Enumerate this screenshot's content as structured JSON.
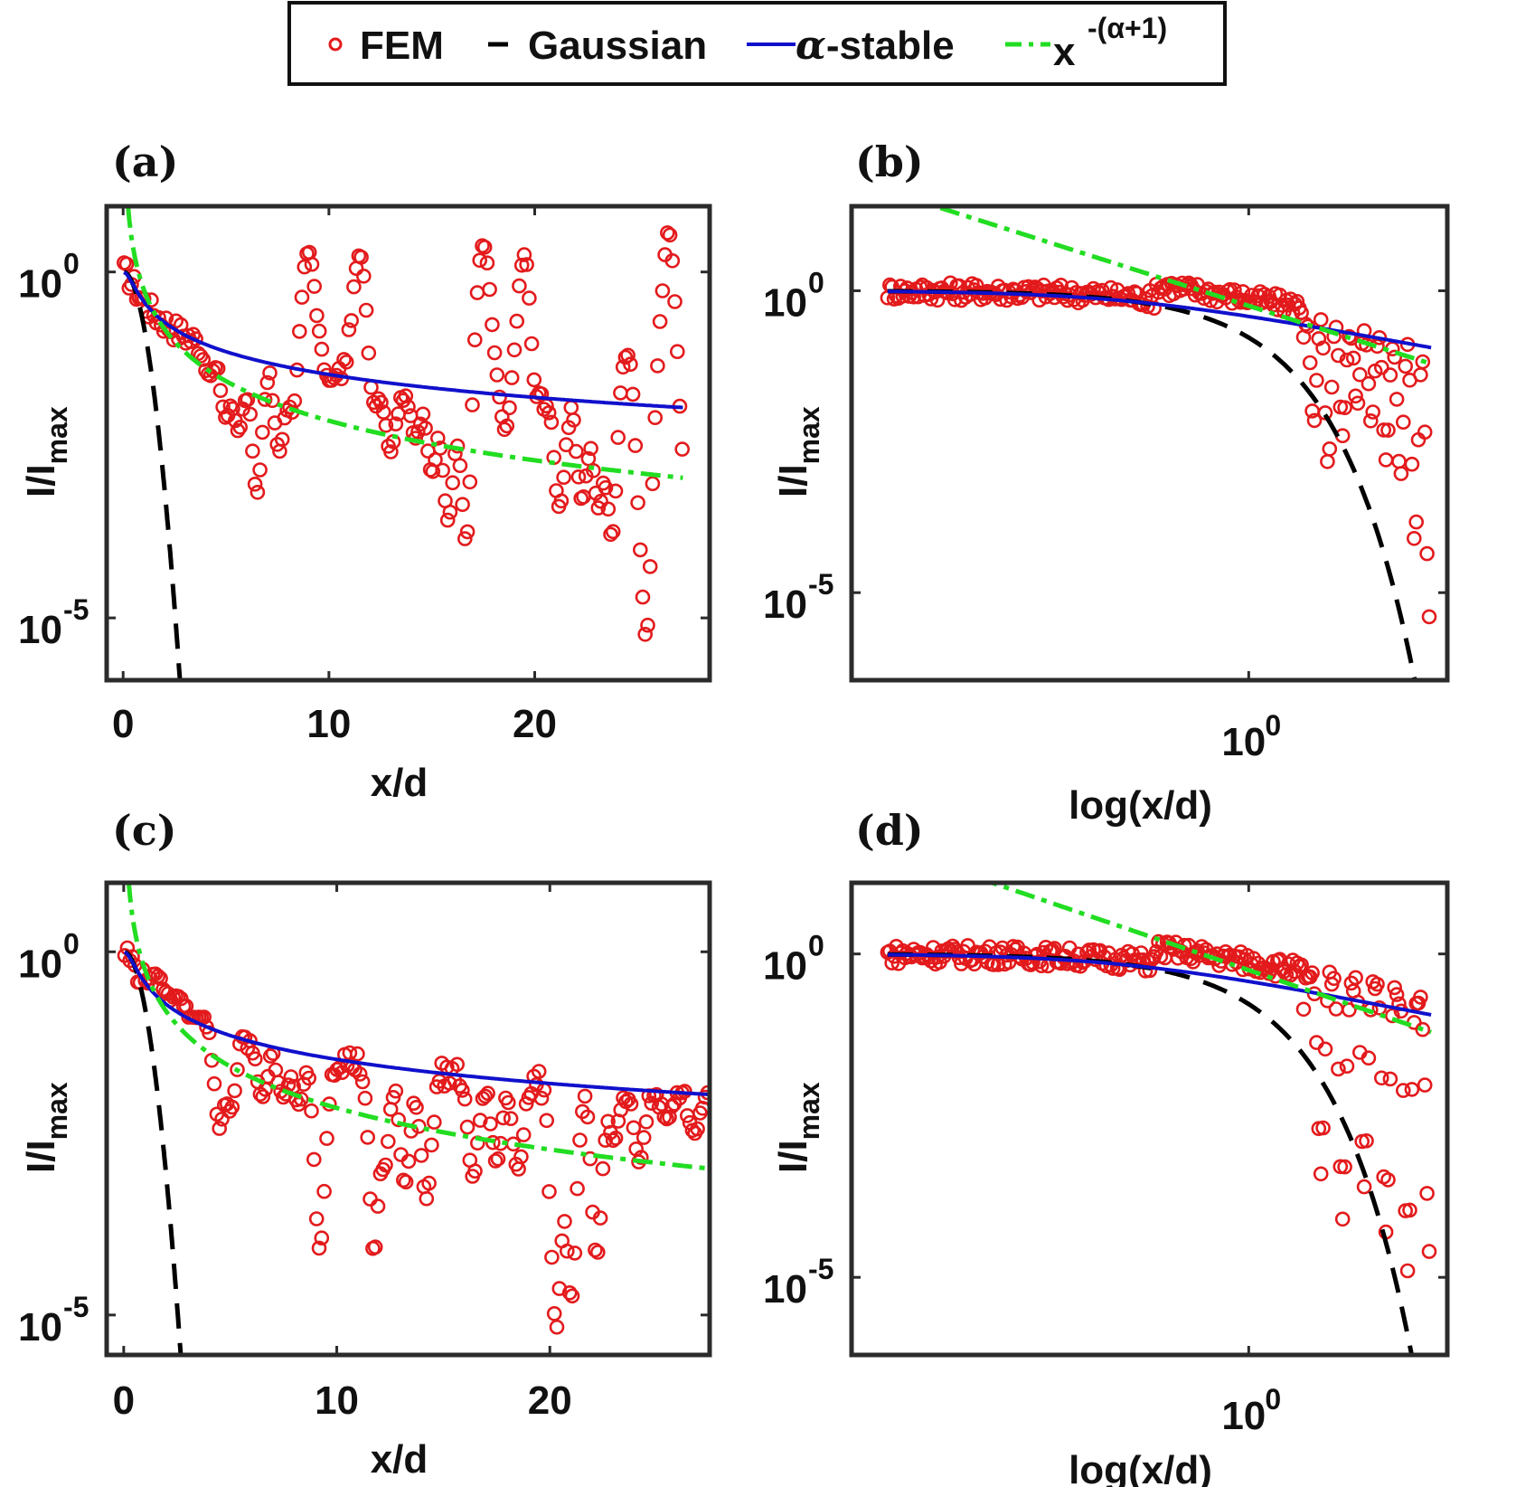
{
  "legend": {
    "entries": [
      {
        "label": "FEM",
        "color": "#e31a1c",
        "style": "circle"
      },
      {
        "label": "Gaussian",
        "color": "#000000",
        "style": "dash"
      },
      {
        "label": "-stable",
        "prefix": "α",
        "color": "#1010cc",
        "style": "solid"
      },
      {
        "label": "x",
        "superscript": "-(α+1)",
        "color": "#22dd22",
        "style": "dashdot"
      }
    ]
  },
  "colors": {
    "fem": "#e31a1c",
    "gaussian": "#000000",
    "stable": "#1010cc",
    "power": "#22dd22",
    "frame": "#2b2b2b"
  },
  "chart_data": [
    {
      "panel": "(a)",
      "type": "line",
      "scale": "semilogy",
      "xlabel": "x/d",
      "ylabel_main": "I/I",
      "ylabel_sub": "max",
      "xlim": [
        -0.8,
        28.5
      ],
      "ylim_log10": [
        -5.9,
        0.95
      ],
      "xticks": [
        0,
        10,
        20
      ],
      "xtick_labels": [
        "0",
        "10",
        "20"
      ],
      "yticks_log10": [
        0,
        -5
      ],
      "ytick_bases": [
        "10",
        "10"
      ],
      "ytick_exps": [
        "0",
        "-5"
      ],
      "alpha": 0.9,
      "x_min": 0.05,
      "x_max": 27.2,
      "fem_dips": [
        [
          4.2,
          -1.5
        ],
        [
          5,
          -2.1
        ],
        [
          5.6,
          -2.3
        ],
        [
          6.5,
          -3.2
        ],
        [
          7.6,
          -2.6
        ],
        [
          8.3,
          -2.3
        ],
        [
          10,
          -1.6
        ],
        [
          12,
          -2.5
        ],
        [
          13,
          -2.6
        ],
        [
          14.2,
          -2.4
        ],
        [
          15,
          -2.9
        ],
        [
          15.8,
          -3.6
        ],
        [
          16.7,
          -4.2
        ],
        [
          18.6,
          -2.4
        ],
        [
          19.8,
          -3.1
        ],
        [
          21.2,
          -3.4
        ],
        [
          22.3,
          -3.3
        ],
        [
          23.1,
          -3.4
        ],
        [
          23.8,
          -4.2
        ],
        [
          25,
          -4.1
        ],
        [
          25.4,
          -5.5
        ],
        [
          26.5,
          -2.8
        ],
        [
          27.2,
          -3.2
        ]
      ],
      "fem_bumps": [
        [
          9,
          0.3
        ],
        [
          11.5,
          0.25
        ],
        [
          17.5,
          0.4
        ],
        [
          19.5,
          0.25
        ],
        [
          26.5,
          0.6
        ],
        [
          24.5,
          -1.2
        ]
      ]
    },
    {
      "panel": "(b)",
      "type": "line",
      "scale": "loglog",
      "xlabel": "log(x/d)",
      "ylabel_main": "I/I",
      "ylabel_sub": "max",
      "xlim_log10": [
        -1.1,
        0.55
      ],
      "ylim_log10": [
        -6.45,
        1.4
      ],
      "xticks_log10": [
        0
      ],
      "xtick_bases": [
        "10"
      ],
      "xtick_exps": [
        "0"
      ],
      "yticks_log10": [
        0,
        -5
      ],
      "ytick_bases": [
        "10",
        "10"
      ],
      "ytick_exps": [
        "0",
        "-5"
      ],
      "alpha": 0.9,
      "x_min": 0.1,
      "x_max": 3.2,
      "fem_dips": [
        [
          0.14,
          -1.5
        ],
        [
          0.18,
          -2.2
        ],
        [
          0.22,
          -2.9
        ],
        [
          0.26,
          -2.4
        ],
        [
          0.3,
          -1.9
        ],
        [
          0.34,
          -2.2
        ],
        [
          0.38,
          -2.8
        ],
        [
          0.42,
          -3.1
        ],
        [
          0.46,
          -4.2
        ],
        [
          0.5,
          -5.4
        ]
      ]
    },
    {
      "panel": "(c)",
      "type": "line",
      "scale": "semilogy",
      "xlabel": "x/d",
      "ylabel_main": "I/I",
      "ylabel_sub": "max",
      "xlim": [
        -0.8,
        27.5
      ],
      "ylim_log10": [
        -5.55,
        0.95
      ],
      "xticks": [
        0,
        10,
        20
      ],
      "xtick_labels": [
        "0",
        "10",
        "20"
      ],
      "yticks_log10": [
        0,
        -5
      ],
      "ytick_bases": [
        "10",
        "10"
      ],
      "ytick_exps": [
        "0",
        "-5"
      ],
      "alpha": 0.9,
      "x_min": 0.05,
      "x_max": 27.5,
      "fem_dips": [
        [
          4.5,
          -2.5
        ],
        [
          5,
          -2.2
        ],
        [
          6.5,
          -2
        ],
        [
          7.5,
          -2
        ],
        [
          8.2,
          -2.1
        ],
        [
          9.2,
          -4.1
        ],
        [
          11.8,
          -4.5
        ],
        [
          12.2,
          -3
        ],
        [
          13.2,
          -3.2
        ],
        [
          14.2,
          -3.4
        ],
        [
          16.4,
          -3.1
        ],
        [
          17.5,
          -2.9
        ],
        [
          18.5,
          -3
        ],
        [
          20.3,
          -5.2
        ],
        [
          21,
          -4.8
        ],
        [
          22.2,
          -4.2
        ],
        [
          23,
          -2.6
        ],
        [
          24.2,
          -2.9
        ],
        [
          25.5,
          -2.3
        ],
        [
          26.8,
          -2.5
        ]
      ],
      "fem_bumps": [
        [
          1.5,
          -0.3
        ],
        [
          2.5,
          -0.6
        ],
        [
          3.5,
          -0.9
        ]
      ]
    },
    {
      "panel": "(d)",
      "type": "line",
      "scale": "loglog",
      "xlabel": "log(x/d)",
      "ylabel_main": "I/I",
      "ylabel_sub": "max",
      "xlim_log10": [
        -1.1,
        0.55
      ],
      "ylim_log10": [
        -6.2,
        1.1
      ],
      "xticks_log10": [
        0
      ],
      "xtick_bases": [
        "10"
      ],
      "xtick_exps": [
        "0"
      ],
      "yticks_log10": [
        0,
        -5
      ],
      "ytick_bases": [
        "10",
        "10"
      ],
      "ytick_exps": [
        "0",
        "-5"
      ],
      "alpha": 0.9,
      "x_min": 0.1,
      "x_max": 3.2,
      "fem_dips": [
        [
          0.14,
          -2
        ],
        [
          0.2,
          -3.4
        ],
        [
          0.26,
          -4.1
        ],
        [
          0.32,
          -3.6
        ],
        [
          0.38,
          -4.3
        ],
        [
          0.44,
          -4.9
        ],
        [
          0.5,
          -4.6
        ]
      ]
    }
  ]
}
